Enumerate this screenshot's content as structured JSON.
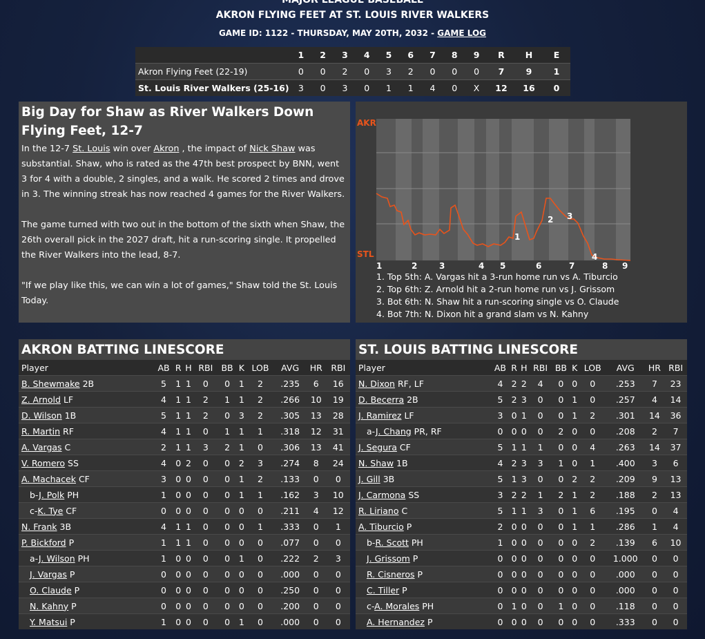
{
  "header": {
    "league": "MAJOR LEAGUE BASEBALL",
    "matchup": "AKRON FLYING FEET AT ST. LOUIS RIVER WALKERS",
    "game_id_text": "GAME ID: 1122 - THURSDAY, MAY 20TH, 2032 - ",
    "game_log_label": "GAME LOG"
  },
  "linescore": {
    "columns": [
      "1",
      "2",
      "3",
      "4",
      "5",
      "6",
      "7",
      "8",
      "9",
      "R",
      "H",
      "E"
    ],
    "rows": [
      {
        "team": "Akron Flying Feet (22-19)",
        "cells": [
          "0",
          "0",
          "2",
          "0",
          "3",
          "2",
          "0",
          "0",
          "0",
          "7",
          "9",
          "1"
        ]
      },
      {
        "team": "St. Louis River Walkers (25-16)",
        "cells": [
          "3",
          "0",
          "3",
          "0",
          "1",
          "1",
          "4",
          "0",
          "X",
          "12",
          "16",
          "0"
        ]
      }
    ]
  },
  "story": {
    "headline": "Big Day for Shaw as River Walkers Down Flying Feet, 12-7",
    "p1_a": "In the 12-7 ",
    "p1_link1": "St. Louis",
    "p1_b": " win over ",
    "p1_link2": "Akron",
    "p1_c": " , the impact of ",
    "p1_link3": "Nick Shaw",
    "p1_d": " was substantial. Shaw, who is rated as the 47th best prospect by BNN, went 3 for 4 with a double, 2 singles, and a walk. He scored 2 times and drove in 3. The winning streak has now reached 4 games for the River Walkers.",
    "p2": "The game turned with two out in the bottom of the sixth when Shaw, the 26th overall pick in the 2027 draft, hit a run-scoring single. It propelled the River Walkers into the lead, 8-7.",
    "p3": "\"If we play like this, we can win a lot of games,\" Shaw told the St. Louis Today."
  },
  "win_prob": {
    "top_label": "AKR",
    "bottom_label": "STL",
    "accent_top": "#e8541c",
    "accent_line": "#e8541c",
    "innings": [
      "1",
      "2",
      "3",
      "4",
      "5",
      "6",
      "7",
      "8",
      "9"
    ],
    "markers": [
      "1",
      "2",
      "3",
      "4"
    ],
    "events": [
      "1. Top 5th: A. Vargas hit a 3-run home run vs A. Tiburcio",
      "2. Top 6th: Z. Arnold hit a 2-run home run vs J. Grissom",
      "3. Bot 6th: N. Shaw hit a run-scoring single vs O. Claude",
      "4. Bot 7th: N. Dixon hit a grand slam vs N. Kahny"
    ]
  },
  "batting": {
    "columns": [
      "Player",
      "AB",
      "R",
      "H",
      "RBI",
      "BB",
      "K",
      "LOB",
      "AVG",
      "HR",
      "RBI"
    ],
    "akron": {
      "title": "AKRON BATTING LINESCORE",
      "rows": [
        {
          "prefix": "",
          "name": "B. Shewmake",
          "pos": " 2B",
          "sub": false,
          "stats": [
            "5",
            "1",
            "1",
            "0",
            "0",
            "1",
            "2",
            ".235",
            "6",
            "16"
          ]
        },
        {
          "prefix": "",
          "name": "Z. Arnold",
          "pos": " LF",
          "sub": false,
          "stats": [
            "4",
            "1",
            "1",
            "2",
            "1",
            "1",
            "2",
            ".266",
            "10",
            "19"
          ]
        },
        {
          "prefix": "",
          "name": "D. Wilson",
          "pos": " 1B",
          "sub": false,
          "stats": [
            "5",
            "1",
            "1",
            "2",
            "0",
            "3",
            "2",
            ".305",
            "13",
            "28"
          ]
        },
        {
          "prefix": "",
          "name": "R. Martin",
          "pos": " RF",
          "sub": false,
          "stats": [
            "4",
            "1",
            "1",
            "0",
            "1",
            "1",
            "1",
            ".318",
            "12",
            "31"
          ]
        },
        {
          "prefix": "",
          "name": "A. Vargas",
          "pos": " C",
          "sub": false,
          "stats": [
            "2",
            "1",
            "1",
            "3",
            "2",
            "1",
            "0",
            ".306",
            "13",
            "41"
          ]
        },
        {
          "prefix": "",
          "name": "V. Romero",
          "pos": " SS",
          "sub": false,
          "stats": [
            "4",
            "0",
            "2",
            "0",
            "0",
            "2",
            "3",
            ".274",
            "8",
            "24"
          ]
        },
        {
          "prefix": "",
          "name": "A. Machacek",
          "pos": " CF",
          "sub": false,
          "stats": [
            "3",
            "0",
            "0",
            "0",
            "0",
            "1",
            "2",
            ".133",
            "0",
            "0"
          ]
        },
        {
          "prefix": "b-",
          "name": "J. Polk",
          "pos": " PH",
          "sub": true,
          "stats": [
            "1",
            "0",
            "0",
            "0",
            "0",
            "1",
            "1",
            ".162",
            "3",
            "10"
          ]
        },
        {
          "prefix": "c-",
          "name": "K. Tye",
          "pos": " CF",
          "sub": true,
          "stats": [
            "0",
            "0",
            "0",
            "0",
            "0",
            "0",
            "0",
            ".211",
            "4",
            "12"
          ]
        },
        {
          "prefix": "",
          "name": "N. Frank",
          "pos": " 3B",
          "sub": false,
          "stats": [
            "4",
            "1",
            "1",
            "0",
            "0",
            "0",
            "1",
            ".333",
            "0",
            "1"
          ]
        },
        {
          "prefix": "",
          "name": "P. Bickford",
          "pos": " P",
          "sub": false,
          "stats": [
            "1",
            "1",
            "1",
            "0",
            "0",
            "0",
            "0",
            ".077",
            "0",
            "0"
          ]
        },
        {
          "prefix": "a-",
          "name": "J. Wilson",
          "pos": " PH",
          "sub": true,
          "stats": [
            "1",
            "0",
            "0",
            "0",
            "0",
            "1",
            "0",
            ".222",
            "2",
            "3"
          ]
        },
        {
          "prefix": "",
          "name": "J. Vargas",
          "pos": " P",
          "sub": true,
          "stats": [
            "0",
            "0",
            "0",
            "0",
            "0",
            "0",
            "0",
            ".000",
            "0",
            "0"
          ]
        },
        {
          "prefix": "",
          "name": "O. Claude",
          "pos": " P",
          "sub": true,
          "stats": [
            "0",
            "0",
            "0",
            "0",
            "0",
            "0",
            "0",
            ".250",
            "0",
            "0"
          ]
        },
        {
          "prefix": "",
          "name": "N. Kahny",
          "pos": " P",
          "sub": true,
          "stats": [
            "0",
            "0",
            "0",
            "0",
            "0",
            "0",
            "0",
            ".200",
            "0",
            "0"
          ]
        },
        {
          "prefix": "",
          "name": "Y. Matsui",
          "pos": " P",
          "sub": true,
          "stats": [
            "1",
            "0",
            "0",
            "0",
            "0",
            "1",
            "0",
            ".000",
            "0",
            "0"
          ]
        }
      ]
    },
    "stl": {
      "title": "ST. LOUIS BATTING LINESCORE",
      "rows": [
        {
          "prefix": "",
          "name": "N. Dixon",
          "pos": " RF, LF",
          "sub": false,
          "stats": [
            "4",
            "2",
            "2",
            "4",
            "0",
            "0",
            "0",
            ".253",
            "7",
            "23"
          ]
        },
        {
          "prefix": "",
          "name": "D. Becerra",
          "pos": " 2B",
          "sub": false,
          "stats": [
            "5",
            "2",
            "3",
            "0",
            "0",
            "1",
            "0",
            ".257",
            "4",
            "14"
          ]
        },
        {
          "prefix": "",
          "name": "J. Ramirez",
          "pos": " LF",
          "sub": false,
          "stats": [
            "3",
            "0",
            "1",
            "0",
            "0",
            "1",
            "2",
            ".301",
            "14",
            "36"
          ]
        },
        {
          "prefix": "a-",
          "name": "J. Chang",
          "pos": " PR, RF",
          "sub": true,
          "stats": [
            "0",
            "0",
            "0",
            "0",
            "2",
            "0",
            "0",
            ".208",
            "2",
            "7"
          ]
        },
        {
          "prefix": "",
          "name": "J. Segura",
          "pos": " CF",
          "sub": false,
          "stats": [
            "5",
            "1",
            "1",
            "1",
            "0",
            "0",
            "4",
            ".263",
            "14",
            "37"
          ]
        },
        {
          "prefix": "",
          "name": "N. Shaw",
          "pos": " 1B",
          "sub": false,
          "stats": [
            "4",
            "2",
            "3",
            "3",
            "1",
            "0",
            "1",
            ".400",
            "3",
            "6"
          ]
        },
        {
          "prefix": "",
          "name": "J. Gill",
          "pos": " 3B",
          "sub": false,
          "stats": [
            "5",
            "1",
            "3",
            "0",
            "0",
            "2",
            "2",
            ".209",
            "9",
            "13"
          ]
        },
        {
          "prefix": "",
          "name": "J. Carmona",
          "pos": " SS",
          "sub": false,
          "stats": [
            "3",
            "2",
            "2",
            "1",
            "2",
            "1",
            "2",
            ".188",
            "2",
            "13"
          ]
        },
        {
          "prefix": "",
          "name": "R. Liriano",
          "pos": " C",
          "sub": false,
          "stats": [
            "5",
            "1",
            "1",
            "3",
            "0",
            "1",
            "6",
            ".195",
            "0",
            "4"
          ]
        },
        {
          "prefix": "",
          "name": "A. Tiburcio",
          "pos": " P",
          "sub": false,
          "stats": [
            "2",
            "0",
            "0",
            "0",
            "0",
            "1",
            "1",
            ".286",
            "1",
            "4"
          ]
        },
        {
          "prefix": "b-",
          "name": "R. Scott",
          "pos": " PH",
          "sub": true,
          "stats": [
            "1",
            "0",
            "0",
            "0",
            "0",
            "0",
            "2",
            ".139",
            "6",
            "10"
          ]
        },
        {
          "prefix": "",
          "name": "J. Grissom",
          "pos": " P",
          "sub": true,
          "stats": [
            "0",
            "0",
            "0",
            "0",
            "0",
            "0",
            "0",
            "1.000",
            "0",
            "0"
          ]
        },
        {
          "prefix": "",
          "name": "R. Cisneros",
          "pos": " P",
          "sub": true,
          "stats": [
            "0",
            "0",
            "0",
            "0",
            "0",
            "0",
            "0",
            ".000",
            "0",
            "0"
          ]
        },
        {
          "prefix": "",
          "name": "C. Tiller",
          "pos": " P",
          "sub": true,
          "stats": [
            "0",
            "0",
            "0",
            "0",
            "0",
            "0",
            "0",
            ".000",
            "0",
            "0"
          ]
        },
        {
          "prefix": "c-",
          "name": "A. Morales",
          "pos": " PH",
          "sub": true,
          "stats": [
            "0",
            "1",
            "0",
            "0",
            "1",
            "0",
            "0",
            ".118",
            "0",
            "0"
          ]
        },
        {
          "prefix": "",
          "name": "A. Hernandez",
          "pos": " P",
          "sub": true,
          "stats": [
            "0",
            "0",
            "0",
            "0",
            "0",
            "0",
            "0",
            ".333",
            "0",
            "0"
          ]
        }
      ]
    }
  }
}
